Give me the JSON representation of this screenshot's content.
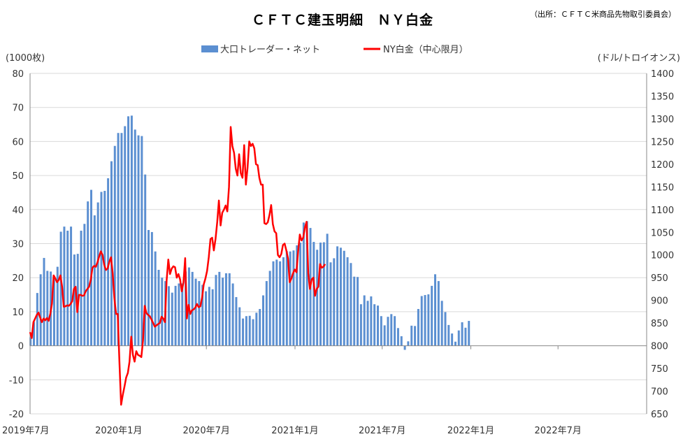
{
  "chart_data": {
    "type": "bar+line",
    "title": "ＣＦＴＣ建玉明細　ＮＹ白金",
    "source": "（出所：ＣＦＴＣ米商品先物取引委員会）",
    "left_unit": "(1000枚)",
    "right_unit": "(ドル/トロイオンス)",
    "left_ylim": [
      -20,
      80
    ],
    "right_ylim": [
      650,
      1400
    ],
    "left_ticks": [
      -20,
      -10,
      0,
      10,
      20,
      30,
      40,
      50,
      60,
      70,
      80
    ],
    "right_ticks": [
      650,
      700,
      750,
      800,
      850,
      900,
      950,
      1000,
      1050,
      1100,
      1150,
      1200,
      1250,
      1300,
      1350,
      1400
    ],
    "x_start": "2019-07-01",
    "x_end": "2023-01-01",
    "x_tick_labels": [
      "2019年7月",
      "2020年1月",
      "2020年7月",
      "2021年1月",
      "2021年7月",
      "2022年1月",
      "2022年7月"
    ],
    "legend_position": "top-center",
    "series": [
      {
        "name": "大口トレーダー・ネット",
        "kind": "bar",
        "axis": "left",
        "color": "#5b8fd1",
        "start_date": "2019-07-02",
        "interval_days": 7,
        "values": [
          2.5,
          7,
          15.5,
          21,
          25.8,
          22,
          21.8,
          19.8,
          23.2,
          33.5,
          35,
          33.8,
          35,
          26.8,
          27,
          33.8,
          35.8,
          42.4,
          45.8,
          38.3,
          42.1,
          45.2,
          45.5,
          49.2,
          54.2,
          58.7,
          62.5,
          62.5,
          64.5,
          67.4,
          67.6,
          63.5,
          61.8,
          61.6,
          50.3,
          34,
          33.4,
          27.7,
          22.3,
          20,
          19,
          17.5,
          15.6,
          17.6,
          18.3,
          18.3,
          21.8,
          23,
          21.7,
          19.7,
          19,
          17.9,
          16,
          17.3,
          16.6,
          20.8,
          21.7,
          20,
          21.3,
          21.3,
          18.3,
          14.3,
          11.3,
          8,
          8.7,
          8.8,
          7.8,
          9.7,
          10.8,
          14.8,
          19,
          22,
          24.8,
          25.3,
          24.8,
          26,
          27.8,
          27.7,
          28,
          29.5,
          30.3,
          36.2,
          36.6,
          34.6,
          30.5,
          28.2,
          30.3,
          30.4,
          32.9,
          24.5,
          25.7,
          29.2,
          28.8,
          27.9,
          26,
          24.3,
          20.3,
          20.2,
          12.2,
          14.8,
          13.2,
          14.5,
          12.2,
          11.8,
          8.7,
          6,
          8.5,
          9.3,
          8.7,
          5.2,
          2.8,
          -1.2,
          1.3,
          5.9,
          5.8,
          10.8,
          14.6,
          14.9,
          15.1,
          17.6,
          21,
          19,
          13.2,
          9.9,
          6.1,
          3.6,
          1.2,
          4.5,
          6.9,
          5.3,
          7.3
        ]
      },
      {
        "name": "NY白金（中心限月）",
        "kind": "line",
        "axis": "right",
        "color": "#ff0000",
        "start_date": "2019-07-01",
        "interval_days": 3.5,
        "values": [
          830,
          817,
          852,
          860,
          868,
          873,
          862,
          852,
          860,
          856,
          861,
          855,
          870,
          893,
          955,
          948,
          940,
          945,
          955,
          930,
          886,
          887,
          889,
          888,
          892,
          898,
          925,
          930,
          874,
          912,
          912,
          910,
          911,
          920,
          925,
          930,
          945,
          972,
          976,
          974,
          984,
          997,
          1008,
          1000,
          978,
          967,
          970,
          985,
          995,
          960,
          905,
          870,
          870,
          765,
          670,
          692,
          710,
          730,
          740,
          765,
          820,
          780,
          765,
          788,
          780,
          778,
          775,
          812,
          888,
          872,
          868,
          865,
          858,
          850,
          842,
          845,
          848,
          850,
          864,
          860,
          852,
          944,
          990,
          958,
          970,
          975,
          973,
          950,
          958,
          946,
          920,
          940,
          993,
          860,
          890,
          870,
          878,
          880,
          884,
          892,
          885,
          887,
          905,
          935,
          948,
          965,
          995,
          1035,
          1038,
          1010,
          1035,
          1072,
          1120,
          1065,
          1093,
          1100,
          1109,
          1096,
          1150,
          1282,
          1240,
          1225,
          1190,
          1175,
          1222,
          1180,
          1170,
          1242,
          1155,
          1192,
          1250,
          1240,
          1245,
          1235,
          1200,
          1198,
          1170,
          1155,
          1155,
          1070,
          1068,
          1072,
          1088,
          1110,
          1068,
          1052,
          1048,
          1000,
          995,
          1002,
          1022,
          1025,
          1010,
          992,
          940,
          948,
          960,
          968,
          962,
          1008,
          1045,
          1032,
          1038,
          1060,
          1073,
          960,
          925,
          946,
          950,
          910,
          925,
          930,
          980,
          972,
          974,
          980
        ]
      }
    ]
  }
}
